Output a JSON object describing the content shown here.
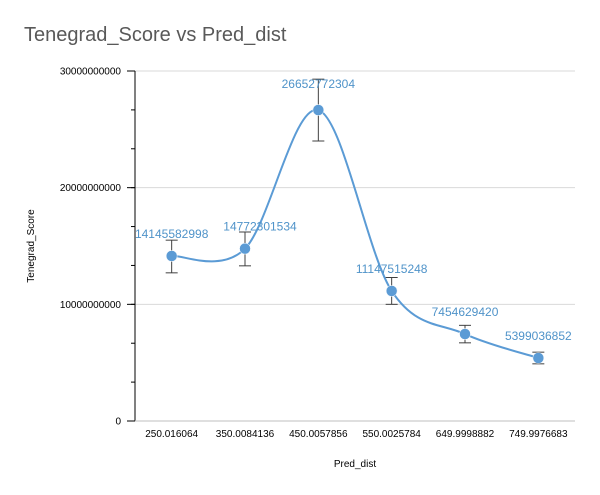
{
  "chart_data": {
    "type": "line",
    "title": "Tenegrad_Score vs Pred_dist",
    "xlabel": "Pred_dist",
    "ylabel": "Tenegrad_Score",
    "categories": [
      "250.016064",
      "350.0084136",
      "450.0057856",
      "550.0025784",
      "649.9998882",
      "749.9976683"
    ],
    "values": [
      14145582998,
      14772301534,
      26652772304,
      11147515248,
      7454629420,
      5399036852
    ],
    "data_labels": [
      "14145582998",
      "14772301534",
      "26652772304",
      "11147515248",
      "7454629420",
      "5399036852"
    ],
    "error_bars": [
      [
        12700000000,
        15500000000
      ],
      [
        13300000000,
        16200000000
      ],
      [
        24000000000,
        29300000000
      ],
      [
        10000000000,
        12300000000
      ],
      [
        6700000000,
        8200000000
      ],
      [
        4900000000,
        5900000000
      ]
    ],
    "ylim": [
      0,
      30000000000
    ],
    "yticks": [
      0,
      10000000000,
      20000000000,
      30000000000
    ],
    "ytick_labels": [
      "0",
      "10000000000",
      "20000000000",
      "30000000000"
    ],
    "grid": true,
    "smooth": true,
    "colors": {
      "series": "#5b9bd5",
      "label": "#4f93c9",
      "grid": "#d9d9d9",
      "errorbar": "#404040"
    }
  }
}
